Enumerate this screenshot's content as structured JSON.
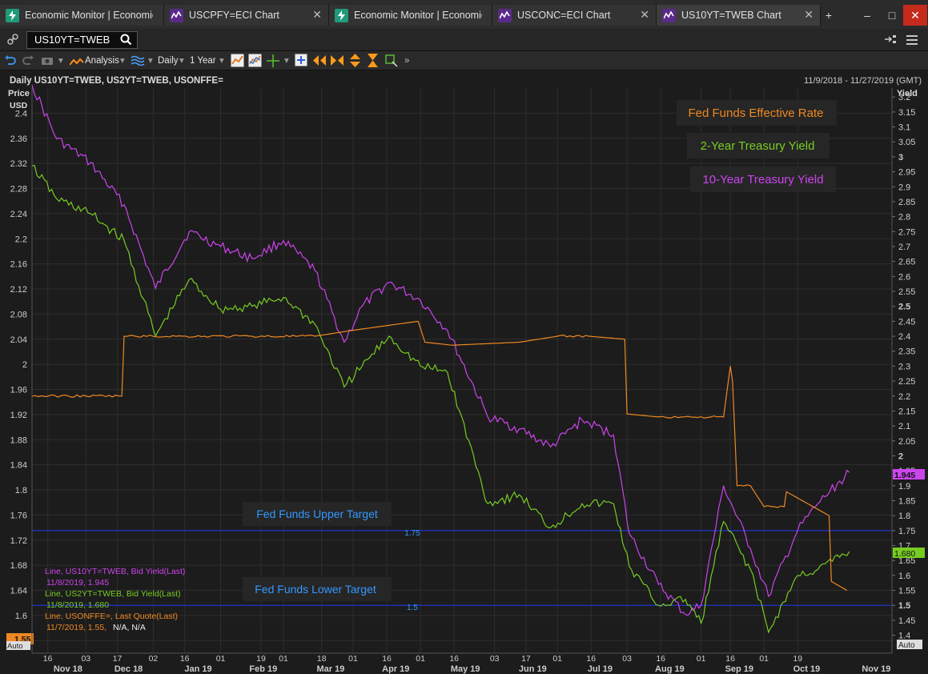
{
  "tabs": [
    {
      "label": "Economic Monitor | Economic",
      "icon": "lightning-icon",
      "active": false
    },
    {
      "label": "USCPFY=ECI Chart",
      "icon": "chart-line-icon",
      "active": false
    },
    {
      "label": "Economic Monitor | Economic",
      "icon": "lightning-icon",
      "active": false
    },
    {
      "label": "USCONC=ECI Chart",
      "icon": "chart-line-icon",
      "active": false
    },
    {
      "label": "US10YT=TWEB Chart",
      "icon": "chart-line-icon",
      "active": true
    }
  ],
  "window": {
    "add_tab": "+",
    "minimize": "–",
    "maximize": "□",
    "close": "✕"
  },
  "search": {
    "value": "US10YT=TWEB"
  },
  "toolbar": {
    "analysis": "Analysis",
    "interval": "Daily",
    "range": "1 Year"
  },
  "header": {
    "title": "Daily US10YT=TWEB, US2YT=TWEB, USONFFE=",
    "date_range": "11/9/2018 - 11/27/2019 (GMT)"
  },
  "axes": {
    "left_title_1": "Price",
    "left_title_2": "USD",
    "right_title": "Yield",
    "auto": "Auto"
  },
  "colors": {
    "ten_year": "#cc44ee",
    "two_year": "#77cc22",
    "fed_funds": "#ee8822",
    "target": "#2233cc",
    "annotation": "#3399ff",
    "background": "#1c1c1c"
  },
  "annotations": {
    "fed_effective": "Fed Funds Effective Rate",
    "two_year": "2-Year Treasury Yield",
    "ten_year": "10-Year Treasury Yield",
    "upper_target": "Fed Funds Upper Target",
    "lower_target": "Fed Funds Lower Target",
    "upper_value": "1.75",
    "lower_value": "1.5"
  },
  "legend": [
    {
      "line1": "Line, US10YT=TWEB, Bid Yield(Last)",
      "line2": "11/8/2019, 1.945",
      "extra": ""
    },
    {
      "line1": "Line, US2YT=TWEB, Bid Yield(Last)",
      "line2": "11/8/2019, 1.680",
      "extra": ""
    },
    {
      "line1": "Line, USONFFE=, Last Quote(Last)",
      "line2": "11/7/2019, 1.55,",
      "extra": "N/A, N/A"
    }
  ],
  "value_tags": {
    "ten_year": "1.945",
    "two_year": "1.680",
    "fed_funds": "1.55"
  },
  "chart_data": {
    "type": "line",
    "title": "Daily US10YT=TWEB, US2YT=TWEB, USONFFE=",
    "date_range": "11/9/2018 - 11/27/2019 (GMT)",
    "x_tick_labels": [
      "16",
      "03",
      "17",
      "02",
      "16",
      "01",
      "19",
      "01",
      "18",
      "01",
      "16",
      "01",
      "16",
      "03",
      "17",
      "01",
      "16",
      "03",
      "16",
      "01",
      "16",
      "01",
      "19"
    ],
    "month_labels": [
      "Nov 18",
      "Dec 18",
      "Jan 19",
      "Feb 19",
      "Mar 19",
      "Apr 19",
      "May 19",
      "Jun 19",
      "Jul 19",
      "Aug 19",
      "Sep 19",
      "Oct 19",
      "Nov 19"
    ],
    "left_axis": {
      "label": "Price USD",
      "ylim": [
        1.54,
        2.44
      ],
      "ticks": [
        "2.4",
        "2.36",
        "2.32",
        "2.28",
        "2.24",
        "2.2",
        "2.16",
        "2.12",
        "2.08",
        "2.04",
        "2",
        "1.96",
        "1.92",
        "1.88",
        "1.84",
        "1.8",
        "1.76",
        "1.72",
        "1.68",
        "1.64",
        "1.6",
        "1.56"
      ]
    },
    "right_axis": {
      "label": "Yield",
      "ylim": [
        1.34,
        3.23
      ],
      "ticks": [
        "3.2",
        "3.15",
        "3.1",
        "3.05",
        "3",
        "2.95",
        "2.9",
        "2.85",
        "2.8",
        "2.75",
        "2.7",
        "2.65",
        "2.6",
        "2.55",
        "2.5",
        "2.45",
        "2.4",
        "2.35",
        "2.3",
        "2.25",
        "2.2",
        "2.15",
        "2.1",
        "2.05",
        "2",
        "1.95",
        "1.9",
        "1.85",
        "1.8",
        "1.75",
        "1.7",
        "1.65",
        "1.6",
        "1.55",
        "1.5",
        "1.45",
        "1.4"
      ]
    },
    "reference_lines": [
      {
        "name": "Fed Funds Upper Target",
        "value": 1.75
      },
      {
        "name": "Fed Funds Lower Target",
        "value": 1.5
      }
    ],
    "grid": true,
    "series": [
      {
        "name": "US10YT=TWEB",
        "axis": "right",
        "dates": [
          "2018-11-09",
          "2018-11-20",
          "2018-12-05",
          "2018-12-20",
          "2019-01-03",
          "2019-01-18",
          "2019-02-01",
          "2019-02-15",
          "2019-03-01",
          "2019-03-15",
          "2019-03-28",
          "2019-04-05",
          "2019-04-17",
          "2019-05-01",
          "2019-05-13",
          "2019-05-31",
          "2019-06-14",
          "2019-06-28",
          "2019-07-12",
          "2019-07-26",
          "2019-08-02",
          "2019-08-15",
          "2019-08-27",
          "2019-09-03",
          "2019-09-13",
          "2019-09-25",
          "2019-10-03",
          "2019-10-16",
          "2019-10-25",
          "2019-11-08"
        ],
        "values": [
          3.24,
          3.06,
          2.98,
          2.84,
          2.56,
          2.75,
          2.7,
          2.66,
          2.72,
          2.62,
          2.38,
          2.5,
          2.58,
          2.52,
          2.42,
          2.13,
          2.09,
          2.03,
          2.12,
          2.07,
          1.74,
          1.57,
          1.47,
          1.5,
          1.9,
          1.69,
          1.53,
          1.75,
          1.84,
          1.945
        ]
      },
      {
        "name": "US2YT=TWEB",
        "axis": "right",
        "dates": [
          "2018-11-09",
          "2018-11-20",
          "2018-12-05",
          "2018-12-20",
          "2019-01-03",
          "2019-01-18",
          "2019-02-01",
          "2019-02-15",
          "2019-03-01",
          "2019-03-15",
          "2019-03-28",
          "2019-04-05",
          "2019-04-17",
          "2019-05-01",
          "2019-05-13",
          "2019-05-31",
          "2019-06-14",
          "2019-06-28",
          "2019-07-12",
          "2019-07-26",
          "2019-08-02",
          "2019-08-15",
          "2019-08-27",
          "2019-09-03",
          "2019-09-13",
          "2019-09-25",
          "2019-10-03",
          "2019-10-16",
          "2019-10-25",
          "2019-11-08"
        ],
        "values": [
          2.97,
          2.86,
          2.81,
          2.72,
          2.4,
          2.59,
          2.49,
          2.5,
          2.53,
          2.44,
          2.23,
          2.3,
          2.4,
          2.3,
          2.28,
          1.84,
          1.87,
          1.76,
          1.84,
          1.84,
          1.63,
          1.5,
          1.52,
          1.44,
          1.78,
          1.62,
          1.41,
          1.6,
          1.62,
          1.68
        ]
      },
      {
        "name": "USONFFE=",
        "axis": "right",
        "dates": [
          "2018-11-09",
          "2018-12-19",
          "2018-12-20",
          "2019-01-15",
          "2019-02-15",
          "2019-03-15",
          "2019-04-01",
          "2019-04-30",
          "2019-05-03",
          "2019-05-15",
          "2019-06-14",
          "2019-07-01",
          "2019-07-15",
          "2019-07-31",
          "2019-08-01",
          "2019-08-15",
          "2019-09-13",
          "2019-09-16",
          "2019-09-17",
          "2019-09-19",
          "2019-09-25",
          "2019-10-01",
          "2019-10-10",
          "2019-10-11",
          "2019-10-30",
          "2019-10-31",
          "2019-11-07"
        ],
        "values": [
          2.2,
          2.2,
          2.4,
          2.4,
          2.4,
          2.4,
          2.42,
          2.45,
          2.38,
          2.37,
          2.38,
          2.4,
          2.4,
          2.39,
          2.14,
          2.13,
          2.13,
          2.3,
          2.25,
          1.9,
          1.9,
          1.83,
          1.83,
          1.88,
          1.8,
          1.58,
          1.55
        ]
      }
    ]
  }
}
